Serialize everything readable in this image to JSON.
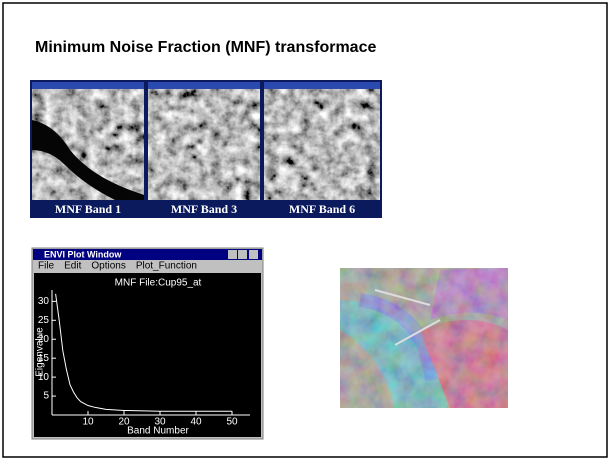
{
  "slide": {
    "title": "Minimum Noise Fraction (MNF) transformace"
  },
  "panels": [
    {
      "caption": "MNF Band 1"
    },
    {
      "caption": "MNF Band 3"
    },
    {
      "caption": "MNF Band 6"
    }
  ],
  "plot_window": {
    "title": "ENVI Plot Window",
    "menu": [
      "File",
      "Edit",
      "Options",
      "Plot_Function"
    ]
  },
  "chart_data": {
    "type": "line",
    "title": "MNF File:Cup95_at",
    "x_label": "Band Number",
    "y_label": "Eigenvalue",
    "x": [
      1,
      2,
      3,
      4,
      5,
      6,
      7,
      8,
      10,
      12,
      15,
      20,
      30,
      40,
      50
    ],
    "values": [
      32,
      25,
      17,
      12,
      8,
      6,
      4.5,
      3.5,
      2.5,
      2,
      1.5,
      1.2,
      1,
      1,
      1
    ],
    "color": "#ffffff",
    "xlim": [
      0,
      55
    ],
    "ylim": [
      0,
      33
    ],
    "xticks": [
      10,
      20,
      30,
      40,
      50
    ],
    "yticks": [
      5,
      10,
      15,
      20,
      25,
      30
    ]
  }
}
